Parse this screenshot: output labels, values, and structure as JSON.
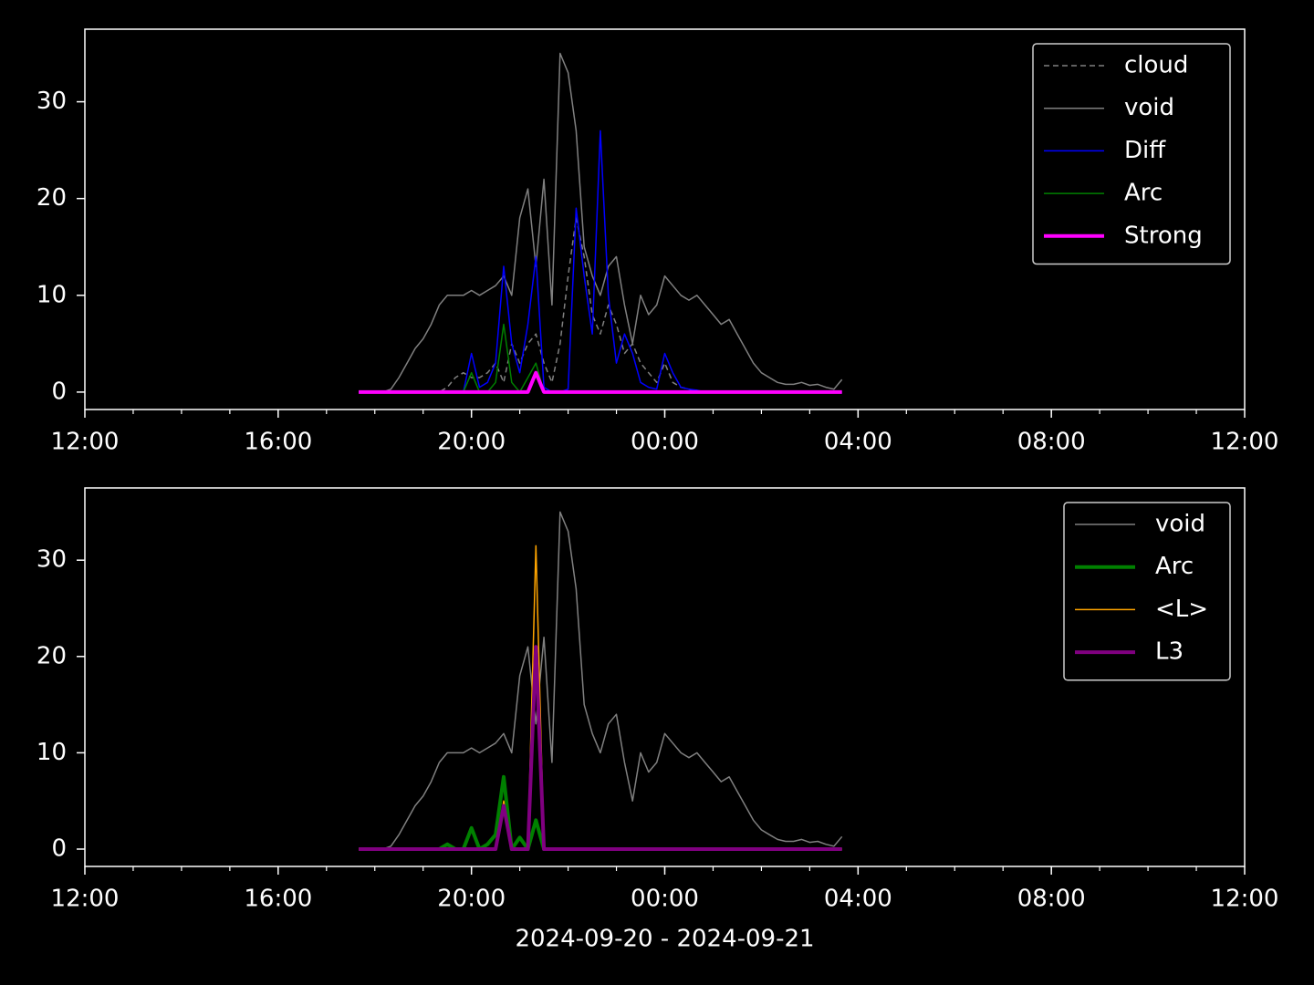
{
  "chart_data": [
    {
      "type": "line",
      "xlabel": null,
      "x": [
        "17:40",
        "17:50",
        "18:00",
        "18:10",
        "18:20",
        "18:30",
        "18:40",
        "18:50",
        "19:00",
        "19:10",
        "19:20",
        "19:30",
        "19:40",
        "19:50",
        "20:00",
        "20:10",
        "20:20",
        "20:30",
        "20:40",
        "20:50",
        "21:00",
        "21:10",
        "21:20",
        "21:30",
        "21:40",
        "21:50",
        "22:00",
        "22:10",
        "22:20",
        "22:30",
        "22:40",
        "22:50",
        "23:00",
        "23:10",
        "23:20",
        "23:30",
        "23:40",
        "23:50",
        "00:00",
        "00:10",
        "00:20",
        "00:30",
        "00:40",
        "00:50",
        "01:00",
        "01:10",
        "01:20",
        "01:30",
        "01:40",
        "01:50",
        "02:00",
        "02:10",
        "02:20",
        "02:30",
        "02:40",
        "02:50",
        "03:00",
        "03:10",
        "03:20",
        "03:30",
        "03:40"
      ],
      "xlim": [
        "12:00",
        "12:00"
      ],
      "xticks": [
        "12:00",
        "16:00",
        "20:00",
        "00:00",
        "04:00",
        "08:00",
        "12:00"
      ],
      "ylim": [
        -1.8,
        37.5
      ],
      "yticks": [
        0,
        10,
        20,
        30
      ],
      "legend": "upper right",
      "series": [
        {
          "name": "cloud",
          "color": "#808080",
          "linestyle": "dashed",
          "linewidth": 1.5,
          "values": [
            0,
            0,
            0,
            0,
            0,
            0,
            0,
            0,
            0,
            0,
            0,
            0.5,
            1.5,
            2,
            1.5,
            1.5,
            2,
            3,
            1,
            5,
            3,
            5,
            6,
            3,
            1,
            5,
            12,
            18,
            14,
            8,
            6,
            9,
            7,
            4,
            5,
            3,
            2,
            1,
            3,
            1,
            0.5,
            0.3,
            0,
            0,
            0,
            0,
            0,
            0,
            0,
            0,
            0,
            0,
            0,
            0,
            0,
            0,
            0,
            0,
            0,
            0,
            0
          ]
        },
        {
          "name": "void",
          "color": "#808080",
          "linestyle": "solid",
          "linewidth": 1.5,
          "values": [
            0,
            0,
            0,
            0,
            0.3,
            1.5,
            3,
            4.5,
            5.5,
            7,
            9,
            10,
            10,
            10,
            10.5,
            10,
            10.5,
            11,
            12,
            10,
            18,
            21,
            13,
            22,
            9,
            35,
            33,
            27,
            15,
            12,
            10,
            13,
            14,
            9,
            5,
            10,
            8,
            9,
            12,
            11,
            10,
            9.5,
            10,
            9,
            8,
            7,
            7.5,
            6,
            4.5,
            3,
            2,
            1.5,
            1,
            0.8,
            0.8,
            1,
            0.7,
            0.8,
            0.5,
            0.3,
            1.3
          ]
        },
        {
          "name": "Diff",
          "color": "#0000ff",
          "linestyle": "solid",
          "linewidth": 1.5,
          "values": [
            0,
            0,
            0,
            0,
            0,
            0,
            0,
            0,
            0,
            0,
            0,
            0,
            0,
            0,
            4,
            0.5,
            1,
            3,
            13,
            5,
            2,
            7,
            14,
            0.5,
            0,
            0,
            0.3,
            19,
            12,
            6,
            27,
            10,
            3,
            6,
            4,
            1,
            0.5,
            0.3,
            4,
            2,
            0.5,
            0.3,
            0.2,
            0,
            0,
            0,
            0,
            0,
            0,
            0,
            0,
            0,
            0,
            0,
            0,
            0,
            0,
            0,
            0,
            0,
            0
          ]
        },
        {
          "name": "Arc",
          "color": "#008000",
          "linestyle": "solid",
          "linewidth": 1.5,
          "values": [
            0,
            0,
            0,
            0,
            0,
            0,
            0,
            0,
            0,
            0,
            0,
            0,
            0,
            0,
            2,
            0,
            0,
            1,
            7,
            1,
            0,
            1.5,
            3,
            0,
            0,
            0,
            0,
            0,
            0,
            0,
            0,
            0,
            0,
            0,
            0,
            0,
            0,
            0,
            0,
            0,
            0,
            0,
            0,
            0,
            0,
            0,
            0,
            0,
            0,
            0,
            0,
            0,
            0,
            0,
            0,
            0,
            0,
            0,
            0,
            0,
            0
          ]
        },
        {
          "name": "Strong",
          "color": "#ff00ff",
          "linestyle": "solid",
          "linewidth": 4,
          "values": [
            0,
            0,
            0,
            0,
            0,
            0,
            0,
            0,
            0,
            0,
            0,
            0,
            0,
            0,
            0,
            0,
            0,
            0,
            0,
            0,
            0,
            0,
            2,
            0,
            0,
            0,
            0,
            0,
            0,
            0,
            0,
            0,
            0,
            0,
            0,
            0,
            0,
            0,
            0,
            0,
            0,
            0,
            0,
            0,
            0,
            0,
            0,
            0,
            0,
            0,
            0,
            0,
            0,
            0,
            0,
            0,
            0,
            0,
            0,
            0,
            0
          ]
        }
      ]
    },
    {
      "type": "line",
      "xlabel": "2024-09-20 - 2024-09-21",
      "x": [
        "17:40",
        "17:50",
        "18:00",
        "18:10",
        "18:20",
        "18:30",
        "18:40",
        "18:50",
        "19:00",
        "19:10",
        "19:20",
        "19:30",
        "19:40",
        "19:50",
        "20:00",
        "20:10",
        "20:20",
        "20:30",
        "20:40",
        "20:50",
        "21:00",
        "21:10",
        "21:20",
        "21:30",
        "21:40",
        "21:50",
        "22:00",
        "22:10",
        "22:20",
        "22:30",
        "22:40",
        "22:50",
        "23:00",
        "23:10",
        "23:20",
        "23:30",
        "23:40",
        "23:50",
        "00:00",
        "00:10",
        "00:20",
        "00:30",
        "00:40",
        "00:50",
        "01:00",
        "01:10",
        "01:20",
        "01:30",
        "01:40",
        "01:50",
        "02:00",
        "02:10",
        "02:20",
        "02:30",
        "02:40",
        "02:50",
        "03:00",
        "03:10",
        "03:20",
        "03:30",
        "03:40"
      ],
      "xlim": [
        "12:00",
        "12:00"
      ],
      "xticks": [
        "12:00",
        "16:00",
        "20:00",
        "00:00",
        "04:00",
        "08:00",
        "12:00"
      ],
      "ylim": [
        -1.8,
        37.5
      ],
      "yticks": [
        0,
        10,
        20,
        30
      ],
      "legend": "upper right",
      "series": [
        {
          "name": "void",
          "color": "#808080",
          "linestyle": "solid",
          "linewidth": 1.5,
          "values": [
            0,
            0,
            0,
            0,
            0.3,
            1.5,
            3,
            4.5,
            5.5,
            7,
            9,
            10,
            10,
            10,
            10.5,
            10,
            10.5,
            11,
            12,
            10,
            18,
            21,
            13,
            22,
            9,
            35,
            33,
            27,
            15,
            12,
            10,
            13,
            14,
            9,
            5,
            10,
            8,
            9,
            12,
            11,
            10,
            9.5,
            10,
            9,
            8,
            7,
            7.5,
            6,
            4.5,
            3,
            2,
            1.5,
            1,
            0.8,
            0.8,
            1,
            0.7,
            0.8,
            0.5,
            0.3,
            1.3
          ]
        },
        {
          "name": "Arc",
          "color": "#008000",
          "linestyle": "solid",
          "linewidth": 4,
          "values": [
            0,
            0,
            0,
            0,
            0,
            0,
            0,
            0,
            0,
            0,
            0,
            0.5,
            0,
            0,
            2.2,
            0,
            0.5,
            1.5,
            7.5,
            0,
            1.2,
            0,
            3,
            0,
            0,
            0,
            0,
            0,
            0,
            0,
            0,
            0,
            0,
            0,
            0,
            0,
            0,
            0,
            0,
            0,
            0,
            0,
            0,
            0,
            0,
            0,
            0,
            0,
            0,
            0,
            0,
            0,
            0,
            0,
            0,
            0,
            0,
            0,
            0,
            0,
            0
          ]
        },
        {
          "name": "<L>",
          "color": "#ffa500",
          "linestyle": "solid",
          "linewidth": 1.5,
          "values": [
            0,
            0,
            0,
            0,
            0,
            0,
            0,
            0,
            0,
            0,
            0,
            0,
            0,
            0,
            0,
            0,
            0,
            0,
            5,
            0,
            0,
            0,
            31.5,
            0,
            0,
            0,
            0,
            0,
            0,
            0,
            0,
            0,
            0,
            0,
            0,
            0,
            0,
            0,
            0,
            0,
            0,
            0,
            0,
            0,
            0,
            0,
            0,
            0,
            0,
            0,
            0,
            0,
            0,
            0,
            0,
            0,
            0,
            0,
            0,
            0,
            0
          ]
        },
        {
          "name": "L3",
          "color": "#800080",
          "linestyle": "solid",
          "linewidth": 4,
          "values": [
            0,
            0,
            0,
            0,
            0,
            0,
            0,
            0,
            0,
            0,
            0,
            0,
            0,
            0,
            0,
            0,
            0,
            0,
            4.5,
            0,
            0,
            0,
            21,
            0,
            0,
            0,
            0,
            0,
            0,
            0,
            0,
            0,
            0,
            0,
            0,
            0,
            0,
            0,
            0,
            0,
            0,
            0,
            0,
            0,
            0,
            0,
            0,
            0,
            0,
            0,
            0,
            0,
            0,
            0,
            0,
            0,
            0,
            0,
            0,
            0,
            0
          ]
        }
      ]
    }
  ]
}
